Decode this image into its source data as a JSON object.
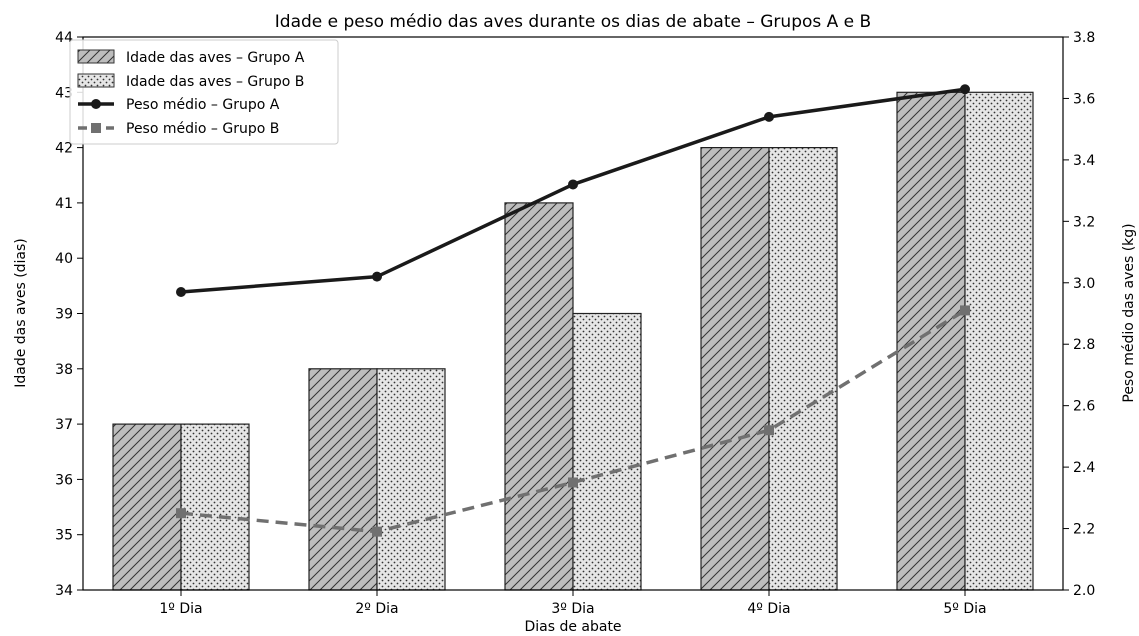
{
  "chart_data": {
    "type": "bar",
    "title": "Idade e peso médio das aves durante os dias de abate – Grupos A e B",
    "xlabel": "Dias de abate",
    "ylabel": "Idade das aves (dias)",
    "ylabel_right": "Peso médio das aves (kg)",
    "categories": [
      "1º Dia",
      "2º Dia",
      "3º Dia",
      "4º Dia",
      "5º Dia"
    ],
    "ylim": [
      34,
      44
    ],
    "ylim_right": [
      2.0,
      3.8
    ],
    "y_ticks": [
      "34",
      "35",
      "36",
      "37",
      "38",
      "39",
      "40",
      "41",
      "42",
      "43",
      "44"
    ],
    "y_ticks_right": [
      "2.0",
      "2.2",
      "2.4",
      "2.6",
      "2.8",
      "3.0",
      "3.2",
      "3.4",
      "3.6",
      "3.8"
    ],
    "grid": false,
    "legend_position": "top-left",
    "bar_series": [
      {
        "name": "Idade das aves – Grupo A",
        "values": [
          37,
          38,
          41,
          42,
          43
        ],
        "color": "#bdbdbd",
        "hatch": "diagonal"
      },
      {
        "name": "Idade das aves – Grupo B",
        "values": [
          37,
          38,
          39,
          42,
          43
        ],
        "color": "#e6e6e6",
        "hatch": "dots"
      }
    ],
    "line_series": [
      {
        "name": "Peso médio – Grupo A",
        "values": [
          2.97,
          3.02,
          3.32,
          3.54,
          3.63
        ],
        "color": "#1a1a1a",
        "style": "solid",
        "marker": "circle",
        "axis": "right"
      },
      {
        "name": "Peso médio – Grupo B",
        "values": [
          2.25,
          2.19,
          2.35,
          2.52,
          2.91
        ],
        "color": "#707070",
        "style": "dashed",
        "marker": "square",
        "axis": "right"
      }
    ]
  }
}
